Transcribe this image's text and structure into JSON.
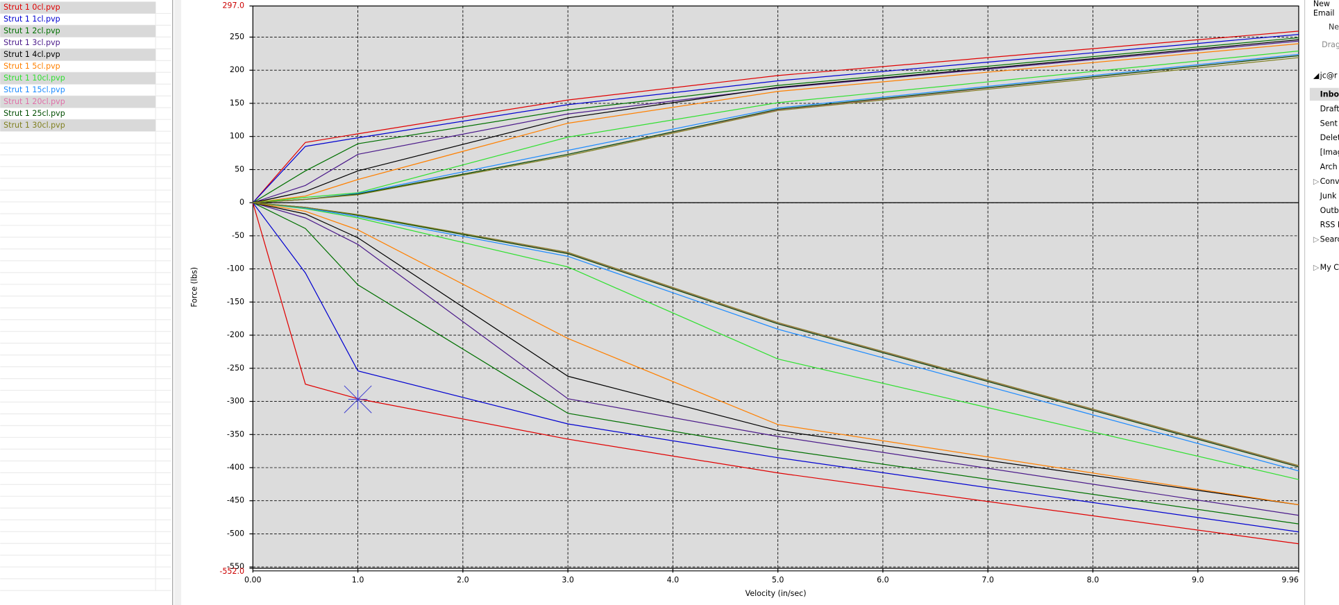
{
  "chart_data": {
    "type": "line",
    "xlabel": "Velocity (in/sec)",
    "ylabel": "Force (lbs)",
    "x": [
      0,
      0.5,
      1,
      3,
      5,
      9.96
    ],
    "xlim": [
      0,
      9.96
    ],
    "ylim": [
      -552,
      297
    ],
    "xticks": [
      {
        "value": 0,
        "label": "0.00"
      },
      {
        "value": 1,
        "label": "1.0"
      },
      {
        "value": 2,
        "label": "2.0"
      },
      {
        "value": 3,
        "label": "3.0"
      },
      {
        "value": 4,
        "label": "4.0"
      },
      {
        "value": 5,
        "label": "5.0"
      },
      {
        "value": 6,
        "label": "6.0"
      },
      {
        "value": 7,
        "label": "7.0"
      },
      {
        "value": 8,
        "label": "8.0"
      },
      {
        "value": 9,
        "label": "9.0"
      },
      9.96
    ],
    "yticks": [
      {
        "value": 297,
        "label": "297.0"
      },
      250,
      200,
      150,
      100,
      50,
      0,
      -50,
      -100,
      -150,
      -200,
      -250,
      -300,
      -350,
      -400,
      -450,
      -500,
      -550,
      {
        "value": -552,
        "label": "-552.0"
      }
    ],
    "limit_label_color": "#cc0000",
    "grid": true,
    "series": [
      {
        "name": "Strut 1 0cl.pvp",
        "color": "#e00000",
        "values": [
          0,
          91,
          104,
          155,
          192,
          259
        ],
        "rebound_values": [
          0,
          -274,
          -296,
          -357,
          -408,
          -515
        ]
      },
      {
        "name": "Strut 1 1cl.pvp",
        "color": "#0000d0",
        "values": [
          0,
          85,
          98,
          148,
          184,
          254
        ],
        "rebound_values": [
          0,
          -106,
          -254,
          -334,
          -385,
          -497
        ]
      },
      {
        "name": "Strut 1 2cl.pvp",
        "color": "#007000",
        "values": [
          0,
          48,
          89,
          140,
          177,
          249
        ],
        "rebound_values": [
          0,
          -39,
          -124,
          -318,
          -372,
          -485
        ]
      },
      {
        "name": "Strut 1 3cl.pvp",
        "color": "#4b1a8a",
        "values": [
          0,
          26,
          73,
          134,
          173,
          244
        ],
        "rebound_values": [
          0,
          -23,
          -63,
          -296,
          -353,
          -472
        ]
      },
      {
        "name": "Strut 1 4cl.pvp",
        "color": "#000000",
        "values": [
          0,
          17,
          48,
          128,
          174,
          246
        ],
        "rebound_values": [
          0,
          -17,
          -53,
          -262,
          -344,
          -456
        ]
      },
      {
        "name": "Strut 1 5cl.pvp",
        "color": "#ff8000",
        "values": [
          0,
          10,
          35,
          120,
          168,
          240
        ],
        "rebound_values": [
          0,
          -13,
          -41,
          -205,
          -335,
          -456
        ]
      },
      {
        "name": "Strut 1 10cl.pvp",
        "color": "#30e030",
        "values": [
          0,
          8,
          15,
          99,
          151,
          229
        ],
        "rebound_values": [
          0,
          -9,
          -23,
          -97,
          -236,
          -418
        ]
      },
      {
        "name": "Strut 1 15cl.pvp",
        "color": "#1e8cff",
        "values": [
          0,
          5,
          14,
          79,
          143,
          224
        ],
        "rebound_values": [
          0,
          -8,
          -21,
          -81,
          -191,
          -405
        ]
      },
      {
        "name": "Strut 1 20cl.pvp",
        "color": "#e070a8",
        "values": [
          0,
          5,
          13,
          73,
          140,
          222
        ],
        "rebound_values": [
          0,
          -7,
          -19,
          -76,
          -182,
          -398
        ]
      },
      {
        "name": "Strut 1 25cl.pvp",
        "color": "#004d00",
        "values": [
          0,
          5,
          13,
          73,
          141,
          222
        ],
        "rebound_values": [
          0,
          -7,
          -19,
          -77,
          -183,
          -399
        ]
      },
      {
        "name": "Strut 1 30cl.pvp",
        "color": "#808020",
        "values": [
          0,
          5,
          12,
          71,
          139,
          219
        ],
        "rebound_values": [
          0,
          -7,
          -18,
          -75,
          -181,
          -397
        ]
      }
    ]
  },
  "mail_panel": {
    "new_email": [
      "New",
      "Email"
    ],
    "ne": "Ne",
    "drag": "Drag",
    "account": "jc@r",
    "folders": [
      "Inbo",
      "Draft",
      "Sent",
      "Delet",
      "[Imag",
      "Arch",
      "Conv",
      "Junk",
      "Outb",
      "RSS F",
      "Searc"
    ],
    "my": "My C"
  }
}
